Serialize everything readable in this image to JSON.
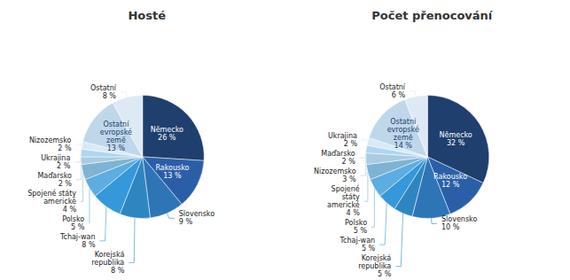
{
  "chart_data": [
    {
      "type": "pie",
      "title": "Hosté",
      "categories": [
        "Německo",
        "Rakousko",
        "Slovensko",
        "Korejská\nrepublika",
        "Tchaj-wan",
        "Polsko",
        "Spojené státy\namerické",
        "Maďarsko",
        "Ukrajina",
        "Nizozemsko",
        "Ostatní\nevropské\nzemě",
        "Ostatní"
      ],
      "values": [
        26,
        13,
        9,
        8,
        8,
        5,
        4,
        2,
        2,
        2,
        13,
        8
      ],
      "value_labels": [
        "26 %",
        "13 %",
        "9 %",
        "8 %",
        "8 %",
        "5 %",
        "4 %",
        "2 %",
        "2 %",
        "2 %",
        "13 %",
        "8 %"
      ],
      "colors": [
        "#1F3F6E",
        "#2A5FA8",
        "#2E75B6",
        "#2E86C1",
        "#3498DB",
        "#5DADE2",
        "#7FB3D3",
        "#A9CCE3",
        "#AED6F1",
        "#D6EAF8",
        "#BFD7EA",
        "#DDEAF5"
      ],
      "data_labels": true
    },
    {
      "type": "pie",
      "title": "Počet přenocování",
      "categories": [
        "Německo",
        "Rakousko",
        "Slovensko",
        "Korejská\nrepublika",
        "Tchaj-wan",
        "Polsko",
        "Spojené\nstáty\namerické",
        "Nizozemsko",
        "Maďarsko",
        "Ukrajina",
        "Ostatní\nevropské\nzemě",
        "Ostatní"
      ],
      "values": [
        32,
        12,
        10,
        5,
        5,
        5,
        4,
        3,
        2,
        2,
        14,
        6
      ],
      "value_labels": [
        "32 %",
        "12 %",
        "10 %",
        "5 %",
        "5 %",
        "5 %",
        "4 %",
        "3 %",
        "2 %",
        "2 %",
        "14 %",
        "6 %"
      ],
      "colors": [
        "#1F3F6E",
        "#2A5FA8",
        "#2E75B6",
        "#2E86C1",
        "#3498DB",
        "#5DADE2",
        "#7FB3D3",
        "#A9CCE3",
        "#AED6F1",
        "#D6EAF8",
        "#BFD7EA",
        "#DDEAF5"
      ],
      "data_labels": true
    }
  ]
}
